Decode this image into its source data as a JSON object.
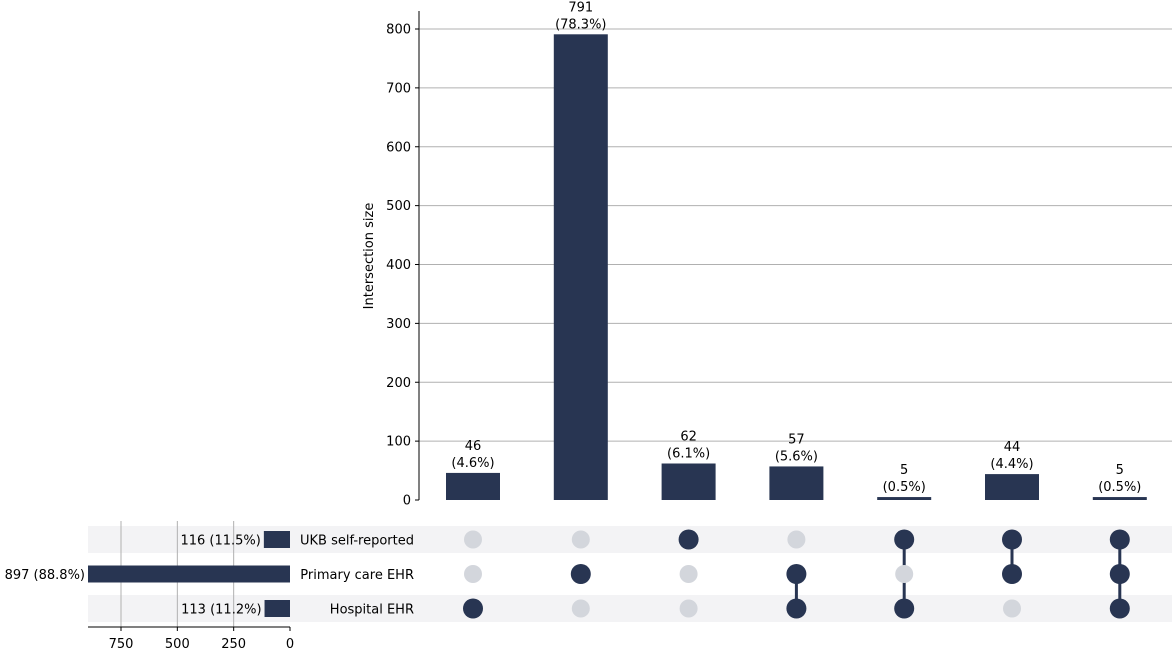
{
  "chart_data": {
    "type": "upset",
    "ylabel": "Intersection size",
    "ylim": [
      0,
      830
    ],
    "yticks": [
      0,
      100,
      200,
      300,
      400,
      500,
      600,
      700,
      800
    ],
    "grid": true,
    "bar_color": "#283552",
    "inactive_dot_color": "#d3d6dc",
    "stripe_color": "#f3f3f5",
    "sets": [
      {
        "name": "UKB self-reported",
        "size": 116,
        "label": "116 (11.5%)"
      },
      {
        "name": "Primary care EHR",
        "size": 897,
        "label": "897 (88.8%)"
      },
      {
        "name": "Hospital EHR",
        "size": 113,
        "label": "113 (11.2%)"
      }
    ],
    "set_size_ticks": [
      750,
      500,
      250,
      0
    ],
    "set_size_xlim": [
      900,
      0
    ],
    "intersections": [
      {
        "members": [
          false,
          false,
          true
        ],
        "value": 46,
        "label": "46",
        "pct": "(4.6%)"
      },
      {
        "members": [
          false,
          true,
          false
        ],
        "value": 791,
        "label": "791",
        "pct": "(78.3%)"
      },
      {
        "members": [
          true,
          false,
          false
        ],
        "value": 62,
        "label": "62",
        "pct": "(6.1%)"
      },
      {
        "members": [
          false,
          true,
          true
        ],
        "value": 57,
        "label": "57",
        "pct": "(5.6%)"
      },
      {
        "members": [
          true,
          false,
          true
        ],
        "value": 5,
        "label": "5",
        "pct": "(0.5%)"
      },
      {
        "members": [
          true,
          true,
          false
        ],
        "value": 44,
        "label": "44",
        "pct": "(4.4%)"
      },
      {
        "members": [
          true,
          true,
          true
        ],
        "value": 5,
        "label": "5",
        "pct": "(0.5%)"
      }
    ]
  }
}
